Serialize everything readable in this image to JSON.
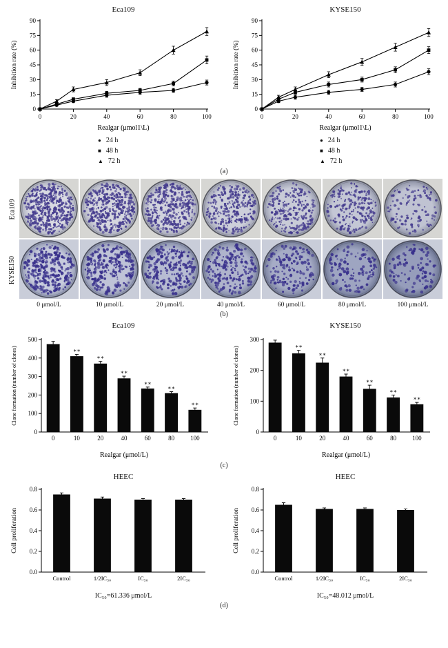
{
  "panel_labels": {
    "a": "(a)",
    "b": "(b)",
    "c": "(c)",
    "d": "(d)"
  },
  "panel_a": {
    "legend": [
      {
        "marker": "●",
        "label": "24 h"
      },
      {
        "marker": "■",
        "label": "48 h"
      },
      {
        "marker": "▲",
        "label": "72 h"
      }
    ]
  },
  "panel_b": {
    "rows": [
      {
        "name": "Eca109",
        "colonies": [
          475,
          410,
          370,
          290,
          235,
          210,
          120
        ]
      },
      {
        "name": "KYSE150",
        "colonies": [
          290,
          255,
          225,
          180,
          140,
          112,
          90
        ]
      }
    ],
    "col_labels": [
      "0 μmol/L",
      "10 μmol/L",
      "20 μmol/L",
      "40 μmol/L",
      "60 μmol/L",
      "80 μmol/L",
      "100 μmol/L"
    ],
    "row_styles": [
      {
        "frame": "#d6d6d3",
        "center_start": "#d9dae2",
        "center_end": "#c0c3d2",
        "edge_start": "#a9acba",
        "edge_end": "#8a8ea2",
        "ring": "#55565e",
        "dot": "#453c8e"
      },
      {
        "frame": "#c9cdd9",
        "center_start": "#c7cbdd",
        "center_end": "#969dbb",
        "edge_start": "#8e95af",
        "edge_end": "#68708e",
        "ring": "#4a4d5c",
        "dot": "#39318c"
      }
    ]
  },
  "chart_data": [
    {
      "type": "line",
      "title": "Eca109",
      "xlabel": "Realgar (μmol1\\L)",
      "ylabel": "Inhibition rate (%)",
      "x": [
        0,
        10,
        20,
        40,
        60,
        80,
        100
      ],
      "xlim": [
        0,
        100
      ],
      "ylim": [
        0,
        90
      ],
      "xticks": [
        0,
        20,
        40,
        60,
        80,
        100
      ],
      "xtick_labels": [
        "0",
        "20",
        "40",
        "60",
        "80",
        "100"
      ],
      "yticks": [
        0,
        15,
        30,
        45,
        60,
        75,
        90
      ],
      "ytick_labels": [
        "0",
        "15",
        "30",
        "45",
        "60",
        "75",
        "90"
      ],
      "series": [
        {
          "name": "24 h",
          "marker": "circle",
          "values": [
            0,
            4,
            8,
            14,
            17,
            19,
            27
          ],
          "errors": [
            0,
            1,
            1.5,
            2,
            2,
            2,
            2.5
          ]
        },
        {
          "name": "48 h",
          "marker": "square",
          "values": [
            0,
            5,
            10,
            16,
            19,
            26,
            50
          ],
          "errors": [
            0,
            1,
            1.5,
            2,
            2,
            2.5,
            4
          ]
        },
        {
          "name": "72 h",
          "marker": "triangle",
          "values": [
            0,
            8,
            20,
            27,
            37,
            60,
            79
          ],
          "errors": [
            0,
            1.5,
            2.5,
            3,
            3,
            4,
            4
          ]
        }
      ]
    },
    {
      "type": "line",
      "title": "KYSE150",
      "xlabel": "Realgar (μmol1\\L)",
      "ylabel": "Inhibition rate (%)",
      "x": [
        0,
        10,
        20,
        40,
        60,
        80,
        100
      ],
      "xlim": [
        0,
        100
      ],
      "ylim": [
        0,
        90
      ],
      "xticks": [
        0,
        20,
        40,
        60,
        80,
        100
      ],
      "xtick_labels": [
        "0",
        "20",
        "40",
        "60",
        "80",
        "100"
      ],
      "yticks": [
        0,
        15,
        30,
        45,
        60,
        75,
        90
      ],
      "ytick_labels": [
        "0",
        "15",
        "30",
        "45",
        "60",
        "75",
        "90"
      ],
      "series": [
        {
          "name": "24 h",
          "marker": "circle",
          "values": [
            0,
            8,
            12,
            17,
            20,
            25,
            38
          ],
          "errors": [
            0,
            1.5,
            2,
            2,
            2,
            2.5,
            3
          ]
        },
        {
          "name": "48 h",
          "marker": "square",
          "values": [
            0,
            10,
            17,
            25,
            30,
            40,
            60
          ],
          "errors": [
            0,
            2,
            2,
            2.5,
            2.5,
            3,
            3.5
          ]
        },
        {
          "name": "72 h",
          "marker": "triangle",
          "values": [
            0,
            12,
            20,
            35,
            48,
            63,
            78
          ],
          "errors": [
            0,
            2,
            2.5,
            3,
            3.5,
            4,
            4
          ]
        }
      ]
    },
    {
      "type": "bar",
      "title": "Eca109",
      "xlabel": "Realgar (μmol/L)",
      "ylabel": "Clone formation (number of clones)",
      "categories": [
        "0",
        "10",
        "20",
        "40",
        "60",
        "80",
        "100"
      ],
      "values": [
        475,
        410,
        370,
        290,
        235,
        210,
        120
      ],
      "errors": [
        15,
        10,
        12,
        12,
        8,
        8,
        10
      ],
      "sig": [
        "",
        "∗∗",
        "∗∗",
        "∗∗",
        "∗∗",
        "∗∗",
        "∗∗"
      ],
      "ylim": [
        0,
        500
      ],
      "yticks": [
        0,
        100,
        200,
        300,
        400,
        500
      ],
      "ytick_labels": [
        "0",
        "100",
        "200",
        "300",
        "400",
        "500"
      ]
    },
    {
      "type": "bar",
      "title": "KYSE150",
      "xlabel": "Realgar (μmol/L)",
      "ylabel": "Clone formation (number of clones)",
      "categories": [
        "0",
        "10",
        "20",
        "40",
        "60",
        "80",
        "100"
      ],
      "values": [
        290,
        255,
        225,
        180,
        140,
        112,
        90
      ],
      "errors": [
        8,
        10,
        15,
        8,
        12,
        8,
        6
      ],
      "sig": [
        "",
        "∗∗",
        "∗∗",
        "∗∗",
        "∗∗",
        "∗∗",
        "∗∗"
      ],
      "ylim": [
        0,
        300
      ],
      "yticks": [
        0,
        100,
        200,
        300
      ],
      "ytick_labels": [
        "0",
        "100",
        "200",
        "300"
      ]
    },
    {
      "type": "bar",
      "title": "HEEC",
      "xlabel": "",
      "ylabel": "Cell proliferation",
      "categories": [
        "Control",
        "1/2IC₅₀",
        "IC₅₀",
        "2IC₅₀"
      ],
      "values": [
        0.75,
        0.71,
        0.7,
        0.7
      ],
      "errors": [
        0.015,
        0.015,
        0.01,
        0.01
      ],
      "sig": [
        "",
        "",
        "",
        ""
      ],
      "ylim": [
        0,
        0.8
      ],
      "yticks": [
        0,
        0.2,
        0.4,
        0.6,
        0.8
      ],
      "ytick_labels": [
        "0.0",
        "0.2",
        "0.4",
        "0.6",
        "0.8"
      ],
      "caption": "IC₅₀=61.336 μmol/L"
    },
    {
      "type": "bar",
      "title": "HEEC",
      "xlabel": "",
      "ylabel": "Cell proliferation",
      "categories": [
        "Control",
        "1/2IC₅₀",
        "IC₅₀",
        "2IC₅₀"
      ],
      "values": [
        0.65,
        0.61,
        0.61,
        0.6
      ],
      "errors": [
        0.02,
        0.01,
        0.01,
        0.01
      ],
      "sig": [
        "",
        "",
        "",
        ""
      ],
      "ylim": [
        0,
        0.8
      ],
      "yticks": [
        0,
        0.2,
        0.4,
        0.6,
        0.8
      ],
      "ytick_labels": [
        "0.0",
        "0.2",
        "0.4",
        "0.6",
        "0.8"
      ],
      "caption": "IC₅₀=48.012 μmol/L"
    }
  ]
}
